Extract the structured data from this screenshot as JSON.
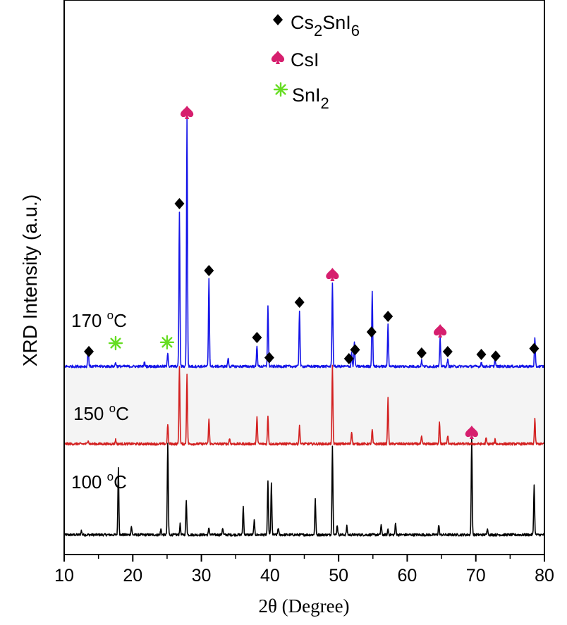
{
  "chart_data": {
    "type": "line",
    "xlabel": "2θ (Degree)",
    "ylabel": "XRD  Intensity (a.u.)",
    "xlim": [
      10,
      80
    ],
    "xticks": [
      "10",
      "20",
      "30",
      "40",
      "50",
      "60",
      "70",
      "80"
    ],
    "y_ticks_shown": false,
    "legend": [
      {
        "marker": "diamond",
        "color": "#000000",
        "label": "Cs",
        "sub1": "2",
        "mid": "SnI",
        "sub2": "6"
      },
      {
        "marker": "spade",
        "color": "#d61f6e",
        "label": "CsI"
      },
      {
        "marker": "asterisk",
        "color": "#66dd22",
        "label": "SnI",
        "sub1": "2"
      }
    ],
    "series": [
      {
        "name": "100 °C",
        "label_main": "100 ",
        "label_sup": "o",
        "label_unit": "C",
        "color": "#000000",
        "peaks": [
          [
            12.5,
            6
          ],
          [
            17.9,
            95
          ],
          [
            19.8,
            12
          ],
          [
            24.1,
            8
          ],
          [
            25.1,
            130
          ],
          [
            26.9,
            15
          ],
          [
            27.8,
            48
          ],
          [
            31.1,
            10
          ],
          [
            33.1,
            10
          ],
          [
            36.1,
            40
          ],
          [
            37.7,
            20
          ],
          [
            39.7,
            75
          ],
          [
            40.2,
            72
          ],
          [
            41.2,
            10
          ],
          [
            46.6,
            50
          ],
          [
            49.1,
            125
          ],
          [
            49.8,
            14
          ],
          [
            51.2,
            12
          ],
          [
            56.2,
            14
          ],
          [
            57.2,
            8
          ],
          [
            58.3,
            16
          ],
          [
            64.6,
            14
          ],
          [
            69.4,
            135
          ],
          [
            71.7,
            10
          ],
          [
            78.5,
            70
          ]
        ]
      },
      {
        "name": "150 °C",
        "label_main": "150 ",
        "label_sup": "o",
        "label_unit": "C",
        "color": "#d32020",
        "peaks": [
          [
            13.5,
            6
          ],
          [
            17.5,
            6
          ],
          [
            25.1,
            28
          ],
          [
            26.8,
            110
          ],
          [
            27.9,
            100
          ],
          [
            31.1,
            35
          ],
          [
            34.1,
            8
          ],
          [
            38.1,
            40
          ],
          [
            39.7,
            40
          ],
          [
            44.3,
            25
          ],
          [
            49.1,
            110
          ],
          [
            51.9,
            18
          ],
          [
            54.9,
            20
          ],
          [
            57.2,
            65
          ],
          [
            62.1,
            10
          ],
          [
            64.7,
            32
          ],
          [
            65.9,
            12
          ],
          [
            71.5,
            8
          ],
          [
            72.8,
            6
          ],
          [
            78.6,
            35
          ]
        ]
      },
      {
        "name": "170 °C",
        "label_main": "170 ",
        "label_sup": "o",
        "label_unit": "C",
        "color": "#1515e8",
        "peaks": [
          [
            13.5,
            28
          ],
          [
            17.5,
            6
          ],
          [
            21.7,
            6
          ],
          [
            25.1,
            20
          ],
          [
            26.8,
            220
          ],
          [
            27.9,
            350
          ],
          [
            31.1,
            125
          ],
          [
            33.9,
            12
          ],
          [
            38.1,
            30
          ],
          [
            39.7,
            85
          ],
          [
            44.3,
            80
          ],
          [
            49.1,
            120
          ],
          [
            51.9,
            20
          ],
          [
            52.3,
            35
          ],
          [
            54.9,
            105
          ],
          [
            57.2,
            60
          ],
          [
            62.1,
            8
          ],
          [
            64.8,
            40
          ],
          [
            65.9,
            10
          ],
          [
            70.8,
            6
          ],
          [
            72.8,
            10
          ],
          [
            78.6,
            40
          ]
        ]
      }
    ],
    "phase_markers": [
      {
        "phase": "Cs2SnI6",
        "marker": "diamond",
        "series": 2,
        "x": [
          13.6,
          26.8,
          31.1,
          38.1,
          39.9,
          44.3,
          51.5,
          52.4,
          54.8,
          57.2,
          62.1,
          65.9,
          70.8,
          72.9,
          78.5
        ]
      },
      {
        "phase": "CsI",
        "marker": "spade",
        "series": 2,
        "x": [
          27.9,
          49.1,
          64.8
        ]
      },
      {
        "phase": "CsI",
        "marker": "spade",
        "series": 0,
        "x": [
          69.4
        ]
      },
      {
        "phase": "SnI2",
        "marker": "asterisk",
        "series": 2,
        "x": [
          17.5,
          25.0
        ]
      }
    ]
  }
}
